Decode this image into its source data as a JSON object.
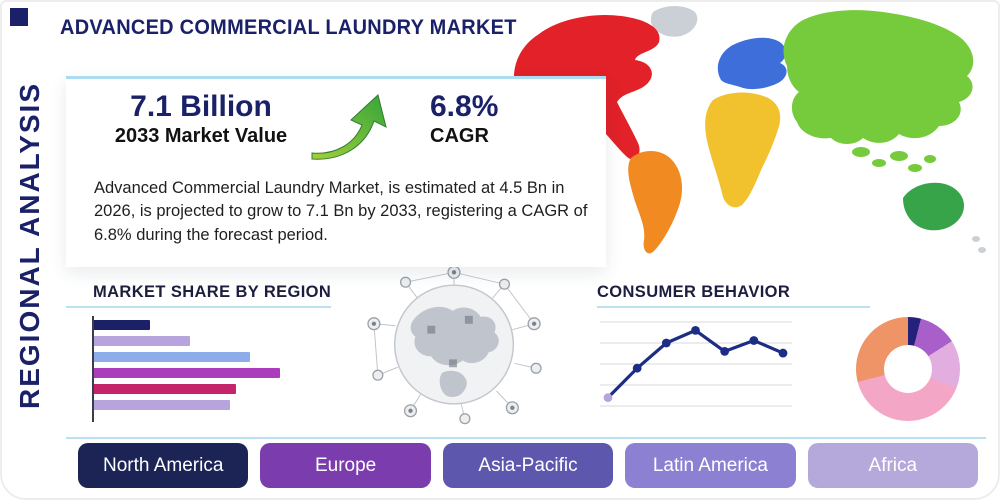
{
  "page": {
    "title": "ADVANCED COMMERCIAL LAUNDRY MARKET",
    "side_label": "REGIONAL ANALYSIS"
  },
  "stats": {
    "value": "7.1 Billion",
    "value_label": "2033 Market Value",
    "cagr": "6.8%",
    "cagr_label": "CAGR",
    "description": "Advanced Commercial Laundry Market, is estimated at 4.5 Bn in 2026, is projected to grow to 7.1 Bn by 2033, registering a CAGR of 6.8% during the forecast period."
  },
  "sections": {
    "market_share_title": "MARKET SHARE BY REGION",
    "consumer_behavior_title": "CONSUMER BEHAVIOR"
  },
  "regions": [
    {
      "label": "North America",
      "color": "#1b2455"
    },
    {
      "label": "Europe",
      "color": "#7b3cae"
    },
    {
      "label": "Asia-Pacific",
      "color": "#5d58ad"
    },
    {
      "label": "Latin America",
      "color": "#8c80d2"
    },
    {
      "label": "Africa",
      "color": "#b5a9dc"
    }
  ],
  "map": {
    "colors": {
      "north_america": "#e22128",
      "greenland": "#cbd0d6",
      "south_america": "#f18a21",
      "europe": "#3d6ed9",
      "africa": "#f2c12e",
      "asia": "#76cb3c",
      "se_asia": "#76cb3c",
      "australia": "#38a44a",
      "new_zealand": "#cbd0d6"
    }
  },
  "chart_data": [
    {
      "type": "bar",
      "title": "Market Share by Region",
      "orientation": "horizontal",
      "values": [
        28,
        48,
        78,
        93,
        71,
        68
      ],
      "scale": "percent-of-max",
      "colors": [
        "#1b2168",
        "#b7a4dc",
        "#8cacea",
        "#ab3cbc",
        "#c42469",
        "#b7a4dc"
      ],
      "axis_labels_visible": false
    },
    {
      "type": "line",
      "title": "Consumer Behavior",
      "values": [
        10,
        45,
        75,
        90,
        65,
        78,
        63
      ],
      "scale": "percent-of-max",
      "line_color": "#1d2d85",
      "marker_color": "#1d2d85",
      "first_marker_color": "#b7a4dc",
      "grid": true,
      "grid_color": "#d8d8d8",
      "axis_labels_visible": false
    },
    {
      "type": "pie",
      "title": "Regional Share Donut",
      "donut": true,
      "slices": [
        {
          "value": 4,
          "color": "#23217a"
        },
        {
          "value": 12,
          "color": "#a85fc9"
        },
        {
          "value": 15,
          "color": "#e2aee0"
        },
        {
          "value": 40,
          "color": "#f3a6c5"
        },
        {
          "value": 29,
          "color": "#ee9467"
        }
      ]
    }
  ]
}
